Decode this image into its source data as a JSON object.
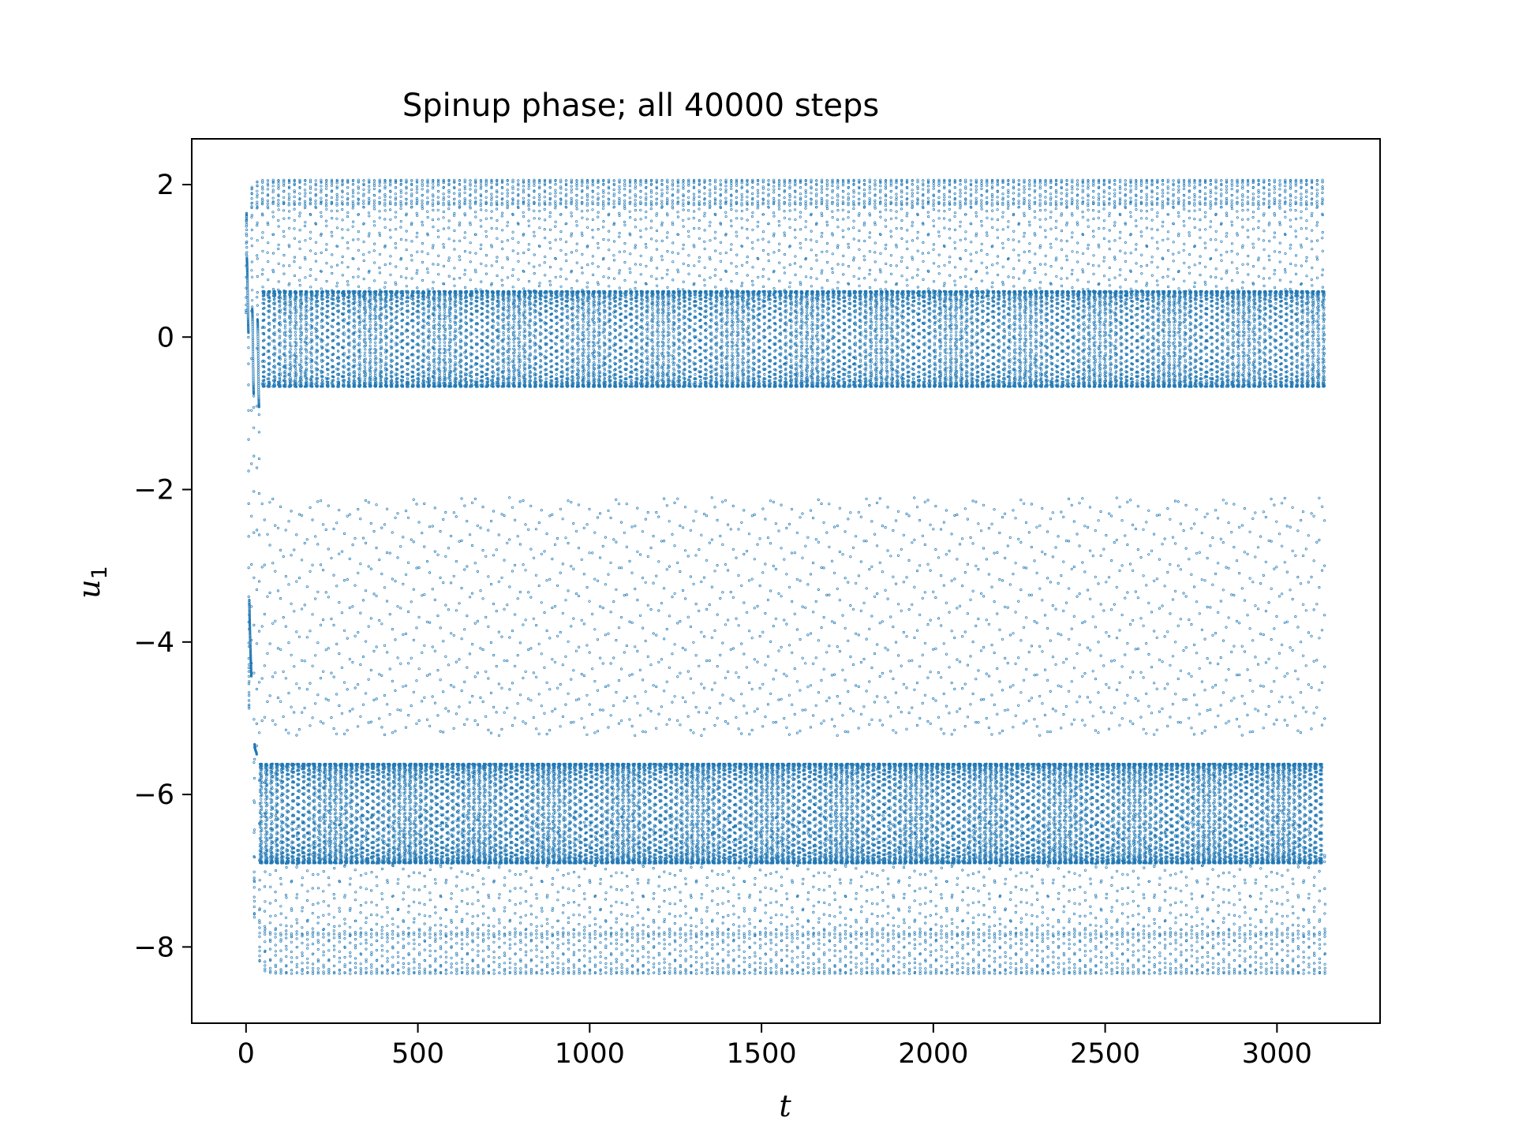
{
  "chart_data": {
    "type": "scatter",
    "title": "Spinup phase; all 40000 steps",
    "xlabel": "t",
    "ylabel": "u",
    "ylabel_subscript": "1",
    "xlim": [
      -158,
      3300
    ],
    "ylim": [
      -9.0,
      2.6
    ],
    "xticks": [
      0,
      500,
      1000,
      1500,
      2000,
      2500,
      3000
    ],
    "yticks": [
      2,
      0,
      -2,
      -4,
      -6,
      -8
    ],
    "ytick_labels": [
      "2",
      "0",
      "−2",
      "−4",
      "−6",
      "−8"
    ],
    "grid": false,
    "legend": "none",
    "marker": "hollow-circle",
    "color": "#1f77b4",
    "series": [
      {
        "n_points": 40000,
        "t_range": [
          0,
          3140
        ],
        "u1_range": [
          -8.5,
          2.1
        ],
        "transient_end_t": 40,
        "envelope_initial": [
          -0.05,
          1.55
        ],
        "envelope_steady": [
          -8.35,
          2.06
        ],
        "period": 15.5,
        "dense_bands": [
          [
            -0.65,
            0.6
          ],
          [
            -6.9,
            -5.6
          ]
        ]
      }
    ]
  }
}
